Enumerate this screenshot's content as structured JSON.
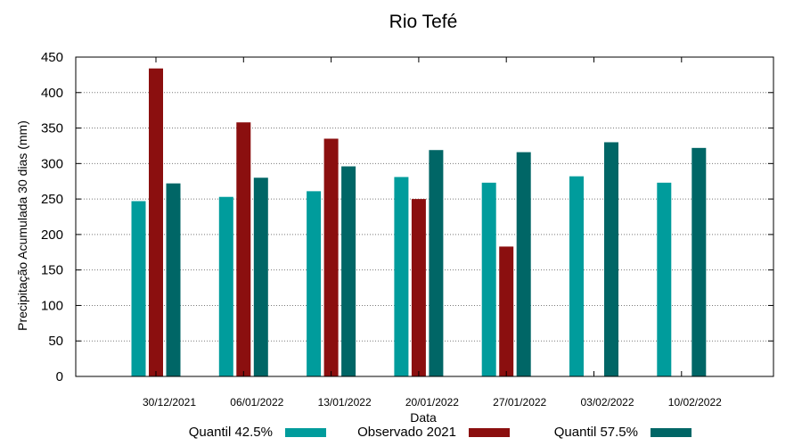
{
  "chart_data": {
    "type": "bar",
    "title": "Rio Tefé",
    "xlabel": "Data",
    "ylabel": "Precipitação Acumulada 30 dias (mm)",
    "ylim": [
      0,
      450
    ],
    "yticks": [
      0,
      50,
      100,
      150,
      200,
      250,
      300,
      350,
      400,
      450
    ],
    "grid": true,
    "legend_placement": "bottom",
    "categories": [
      "30/12/2021",
      "06/01/2022",
      "13/01/2022",
      "20/01/2022",
      "27/01/2022",
      "03/02/2022",
      "10/02/2022"
    ],
    "series": [
      {
        "name": "Quantil 42.5%",
        "color": "#009c9c",
        "values": [
          247,
          253,
          261,
          281,
          273,
          282,
          273
        ]
      },
      {
        "name": "Observado 2021",
        "color": "#8b0f0f",
        "values": [
          434,
          358,
          335,
          250,
          183,
          null,
          null
        ]
      },
      {
        "name": "Quantil 57.5%",
        "color": "#006666",
        "values": [
          272,
          280,
          296,
          319,
          316,
          330,
          322
        ]
      }
    ]
  }
}
